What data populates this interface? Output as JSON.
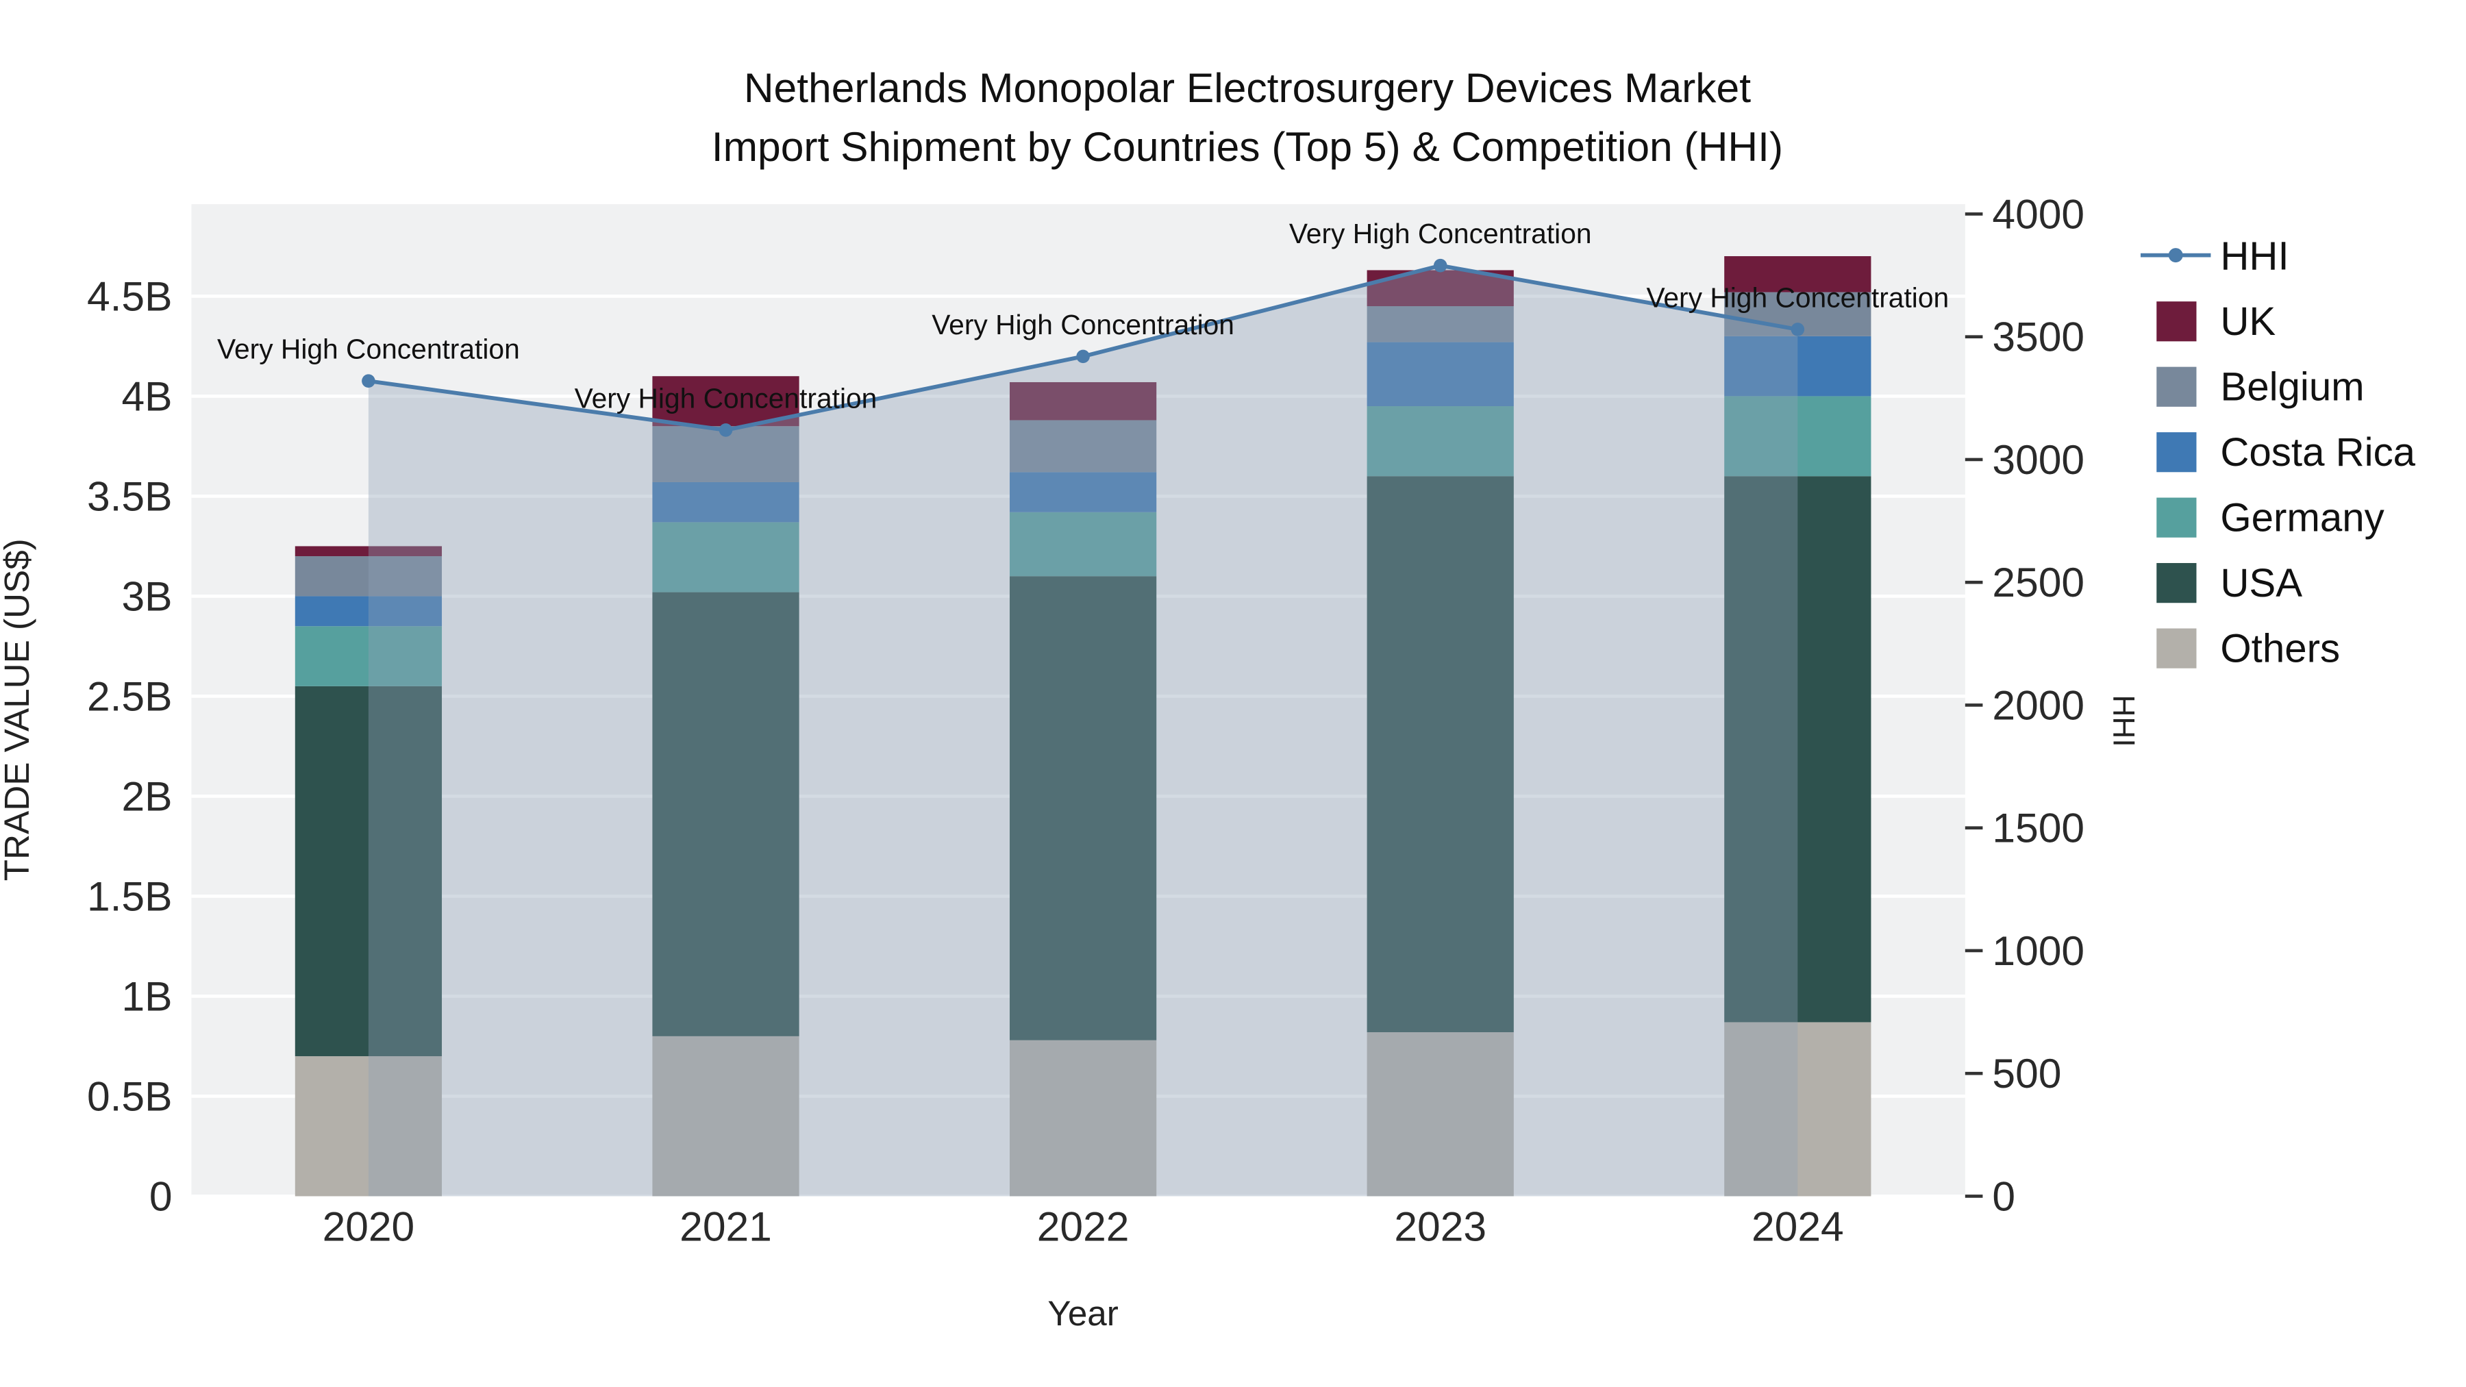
{
  "title": {
    "line1": "Netherlands Monopolar Electrosurgery Devices Market",
    "line2": "Import Shipment by Countries (Top 5) & Competition (HHI)"
  },
  "axes": {
    "y_left_label": "TRADE VALUE (US$)",
    "y_right_label": "HHI",
    "x_label": "Year",
    "y_left_ticks": [
      "0",
      "0.5B",
      "1B",
      "1.5B",
      "2B",
      "2.5B",
      "3B",
      "3.5B",
      "4B",
      "4.5B"
    ],
    "y_right_ticks": [
      "0",
      "500",
      "1000",
      "1500",
      "2000",
      "2500",
      "3000",
      "3500",
      "4000"
    ]
  },
  "chart_data": {
    "type": "bar",
    "subtype": "stacked-bars-with-hhi-line-and-area",
    "title": "Netherlands Monopolar Electrosurgery Devices Market Import Shipment by Countries (Top 5) & Competition (HHI)",
    "xlabel": "Year",
    "ylabel_left": "TRADE VALUE (US$)",
    "ylabel_right": "HHI",
    "ylim_left_billion": [
      0,
      4.96
    ],
    "ylim_right": [
      0,
      4040
    ],
    "grid": "on",
    "legend_position": "right",
    "categories": [
      "2020",
      "2021",
      "2022",
      "2023",
      "2024"
    ],
    "series": [
      {
        "name": "Others",
        "color": "#b3b0aa",
        "values_billion": [
          0.7,
          0.8,
          0.78,
          0.82,
          0.87
        ]
      },
      {
        "name": "USA",
        "color": "#2e524e",
        "values_billion": [
          1.85,
          2.22,
          2.32,
          2.78,
          2.73
        ]
      },
      {
        "name": "Germany",
        "color": "#56a09e",
        "values_billion": [
          0.3,
          0.35,
          0.32,
          0.35,
          0.4
        ]
      },
      {
        "name": "Costa Rica",
        "color": "#3f79b4",
        "values_billion": [
          0.15,
          0.2,
          0.2,
          0.32,
          0.3
        ]
      },
      {
        "name": "Belgium",
        "color": "#78889b",
        "values_billion": [
          0.2,
          0.28,
          0.26,
          0.18,
          0.22
        ]
      },
      {
        "name": "UK",
        "color": "#6e1c3c",
        "values_billion": [
          0.05,
          0.25,
          0.19,
          0.18,
          0.18
        ]
      }
    ],
    "totals_billion": [
      3.25,
      4.1,
      4.07,
      4.63,
      4.7
    ],
    "line_series": {
      "name": "HHI",
      "color": "#4b7cab",
      "values": [
        3320,
        3120,
        3420,
        3790,
        3530
      ],
      "annotations": [
        "Very High Concentration",
        "Very High Concentration",
        "Very High Concentration",
        "Very High Concentration",
        "Very High Concentration"
      ]
    },
    "legend": [
      {
        "label": "HHI",
        "type": "line",
        "color": "#4b7cab"
      },
      {
        "label": "UK",
        "type": "swatch",
        "color": "#6e1c3c"
      },
      {
        "label": "Belgium",
        "type": "swatch",
        "color": "#78889b"
      },
      {
        "label": "Costa Rica",
        "type": "swatch",
        "color": "#3f79b4"
      },
      {
        "label": "Germany",
        "type": "swatch",
        "color": "#56a09e"
      },
      {
        "label": "USA",
        "type": "swatch",
        "color": "#2e524e"
      },
      {
        "label": "Others",
        "type": "swatch",
        "color": "#b3b0aa"
      }
    ],
    "colors": {
      "plot_bg": "#f0f1f2",
      "grid": "#ffffff",
      "area_fill": "#8da0b5",
      "area_opacity": 0.38,
      "tick_label": "#2a2a2a",
      "annotation": "#111111"
    }
  }
}
